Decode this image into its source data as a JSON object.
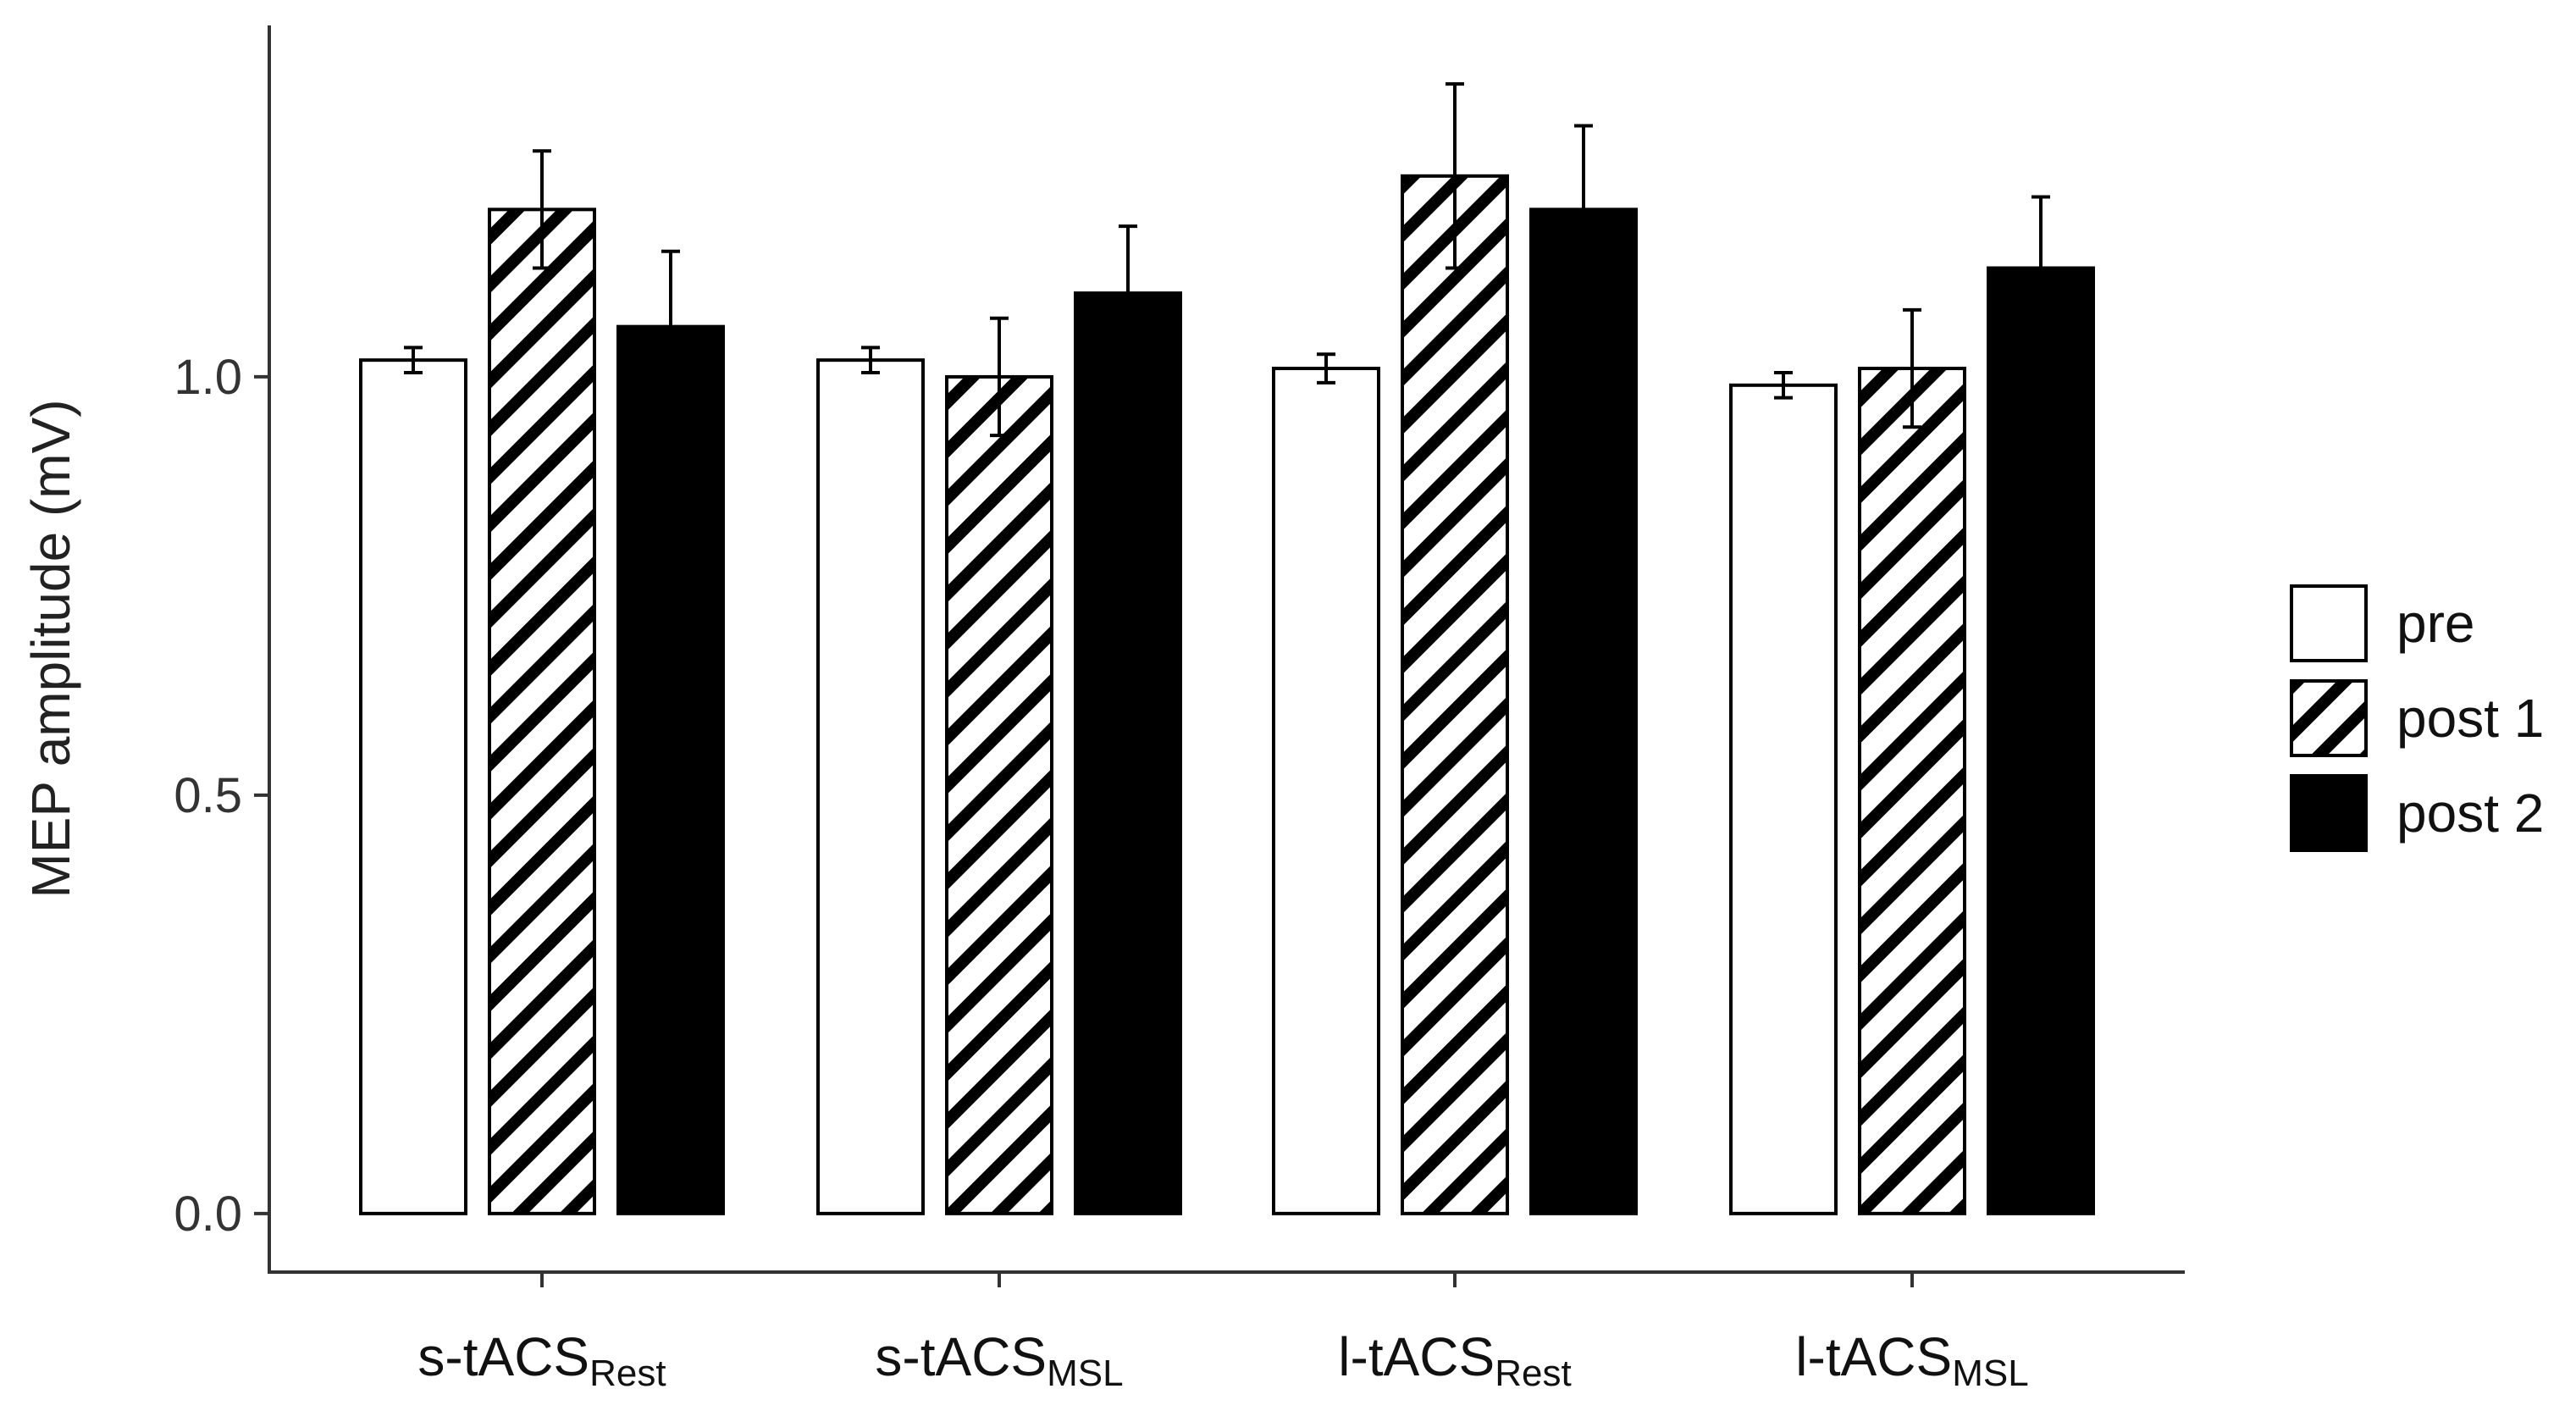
{
  "chart_data": {
    "type": "bar",
    "title": "",
    "xlabel": "",
    "ylabel": "MEP amplitude (mV)",
    "ylim": [
      -0.07,
      1.42
    ],
    "yticks": [
      0.0,
      0.5,
      1.0
    ],
    "ytick_labels": [
      "0.0",
      "0.5",
      "1.0"
    ],
    "grid": false,
    "legend_position": "right",
    "categories": [
      {
        "main": "s-tACS",
        "sub": "Rest"
      },
      {
        "main": "s-tACS",
        "sub": "MSL"
      },
      {
        "main": "l-tACS",
        "sub": "Rest"
      },
      {
        "main": "l-tACS",
        "sub": "MSL"
      }
    ],
    "series": [
      {
        "name": "pre",
        "fill": "white",
        "values": [
          1.02,
          1.02,
          1.01,
          0.99
        ],
        "errors": [
          0.015,
          0.015,
          0.017,
          0.015
        ]
      },
      {
        "name": "post 1",
        "fill": "hatched",
        "values": [
          1.2,
          1.0,
          1.24,
          1.01
        ],
        "errors": [
          0.07,
          0.07,
          0.11,
          0.07
        ]
      },
      {
        "name": "post 2",
        "fill": "black",
        "values": [
          1.06,
          1.1,
          1.2,
          1.13
        ],
        "errors": [
          0.09,
          0.08,
          0.1,
          0.085
        ]
      }
    ]
  },
  "colors": {
    "axis": "#333333",
    "bar_outline": "#000000",
    "solid": "#000000",
    "hollow": "#ffffff"
  }
}
